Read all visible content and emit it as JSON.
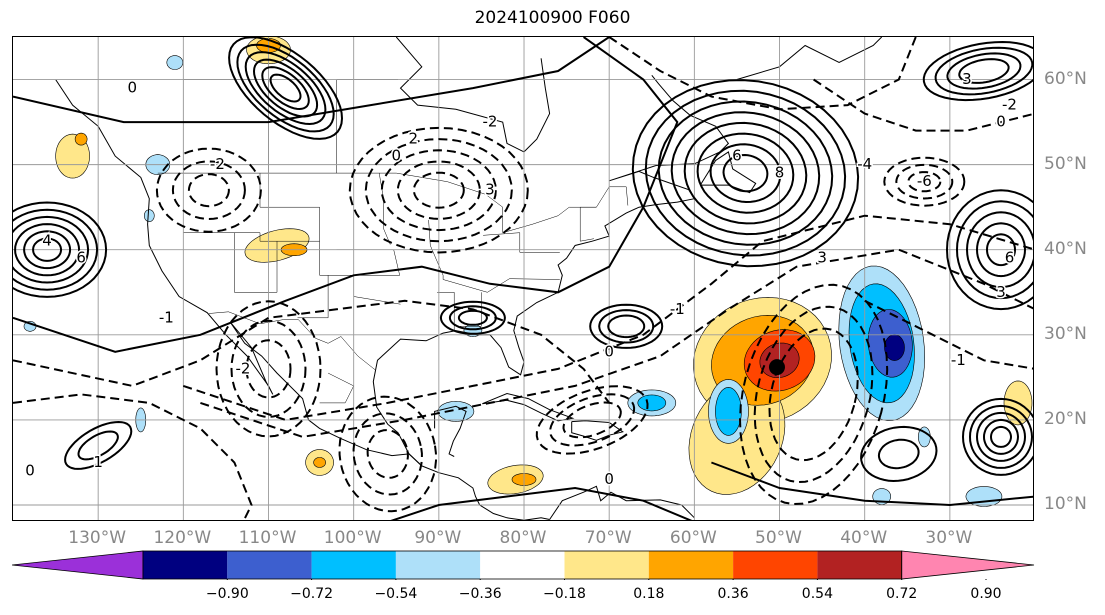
{
  "title": "2024100900 F060",
  "lon_labels": [
    {
      "text": "130°W",
      "lon": -130
    },
    {
      "text": "120°W",
      "lon": -120
    },
    {
      "text": "110°W",
      "lon": -110
    },
    {
      "text": "100°W",
      "lon": -100
    },
    {
      "text": "90°W",
      "lon": -90
    },
    {
      "text": "80°W",
      "lon": -80
    },
    {
      "text": "70°W",
      "lon": -70
    },
    {
      "text": "60°W",
      "lon": -60
    },
    {
      "text": "50°W",
      "lon": -50
    },
    {
      "text": "40°W",
      "lon": -40
    },
    {
      "text": "30°W",
      "lon": -30
    }
  ],
  "lat_labels": [
    {
      "text": "60°N",
      "lat": 60
    },
    {
      "text": "50°N",
      "lat": 50
    },
    {
      "text": "40°N",
      "lat": 40
    },
    {
      "text": "30°N",
      "lat": 30
    },
    {
      "text": "20°N",
      "lat": 20
    },
    {
      "text": "10°N",
      "lat": 10
    }
  ],
  "colorbar": {
    "ticks": [
      "−0.90",
      "−0.72",
      "−0.54",
      "−0.36",
      "−0.18",
      "0.18",
      "0.36",
      "0.54",
      "0.72",
      "0.90"
    ],
    "colors": [
      "#9b30d9",
      "#000080",
      "#3d5fcf",
      "#00bfff",
      "#aee0f9",
      "#ffffff",
      "#ffe78a",
      "#ffa500",
      "#ff4500",
      "#b22222",
      "#ff85b0"
    ]
  },
  "contour_labels": [
    {
      "text": "4",
      "lon": -136,
      "lat": 41
    },
    {
      "text": "6",
      "lon": -132,
      "lat": 39
    },
    {
      "text": "0",
      "lon": -126,
      "lat": 59
    },
    {
      "text": "-2",
      "lon": -116,
      "lat": 50
    },
    {
      "text": "-1",
      "lon": -122,
      "lat": 32
    },
    {
      "text": "2",
      "lon": -93,
      "lat": 53
    },
    {
      "text": "3",
      "lon": -84,
      "lat": 47
    },
    {
      "text": "-2",
      "lon": -84,
      "lat": 55
    },
    {
      "text": "0",
      "lon": -95,
      "lat": 51
    },
    {
      "text": "6",
      "lon": -55,
      "lat": 51
    },
    {
      "text": "8",
      "lon": -50,
      "lat": 49
    },
    {
      "text": "3",
      "lon": -45,
      "lat": 39
    },
    {
      "text": "-4",
      "lon": -40,
      "lat": 50
    },
    {
      "text": "-1",
      "lon": -62,
      "lat": 33
    },
    {
      "text": "0",
      "lon": -70,
      "lat": 28
    },
    {
      "text": "-6",
      "lon": -33,
      "lat": 48
    },
    {
      "text": "6",
      "lon": -23,
      "lat": 39
    },
    {
      "text": "3",
      "lon": -24,
      "lat": 35
    },
    {
      "text": "-1",
      "lon": -29,
      "lat": 27
    },
    {
      "text": "1",
      "lon": -130,
      "lat": 15
    },
    {
      "text": "0",
      "lon": -138,
      "lat": 14
    },
    {
      "text": "0",
      "lon": -70,
      "lat": 13
    },
    {
      "text": "-2",
      "lon": -113,
      "lat": 26
    },
    {
      "text": "3",
      "lon": -28,
      "lat": 60
    },
    {
      "text": "-2",
      "lon": -23,
      "lat": 57
    },
    {
      "text": "0",
      "lon": -24,
      "lat": 55
    }
  ]
}
